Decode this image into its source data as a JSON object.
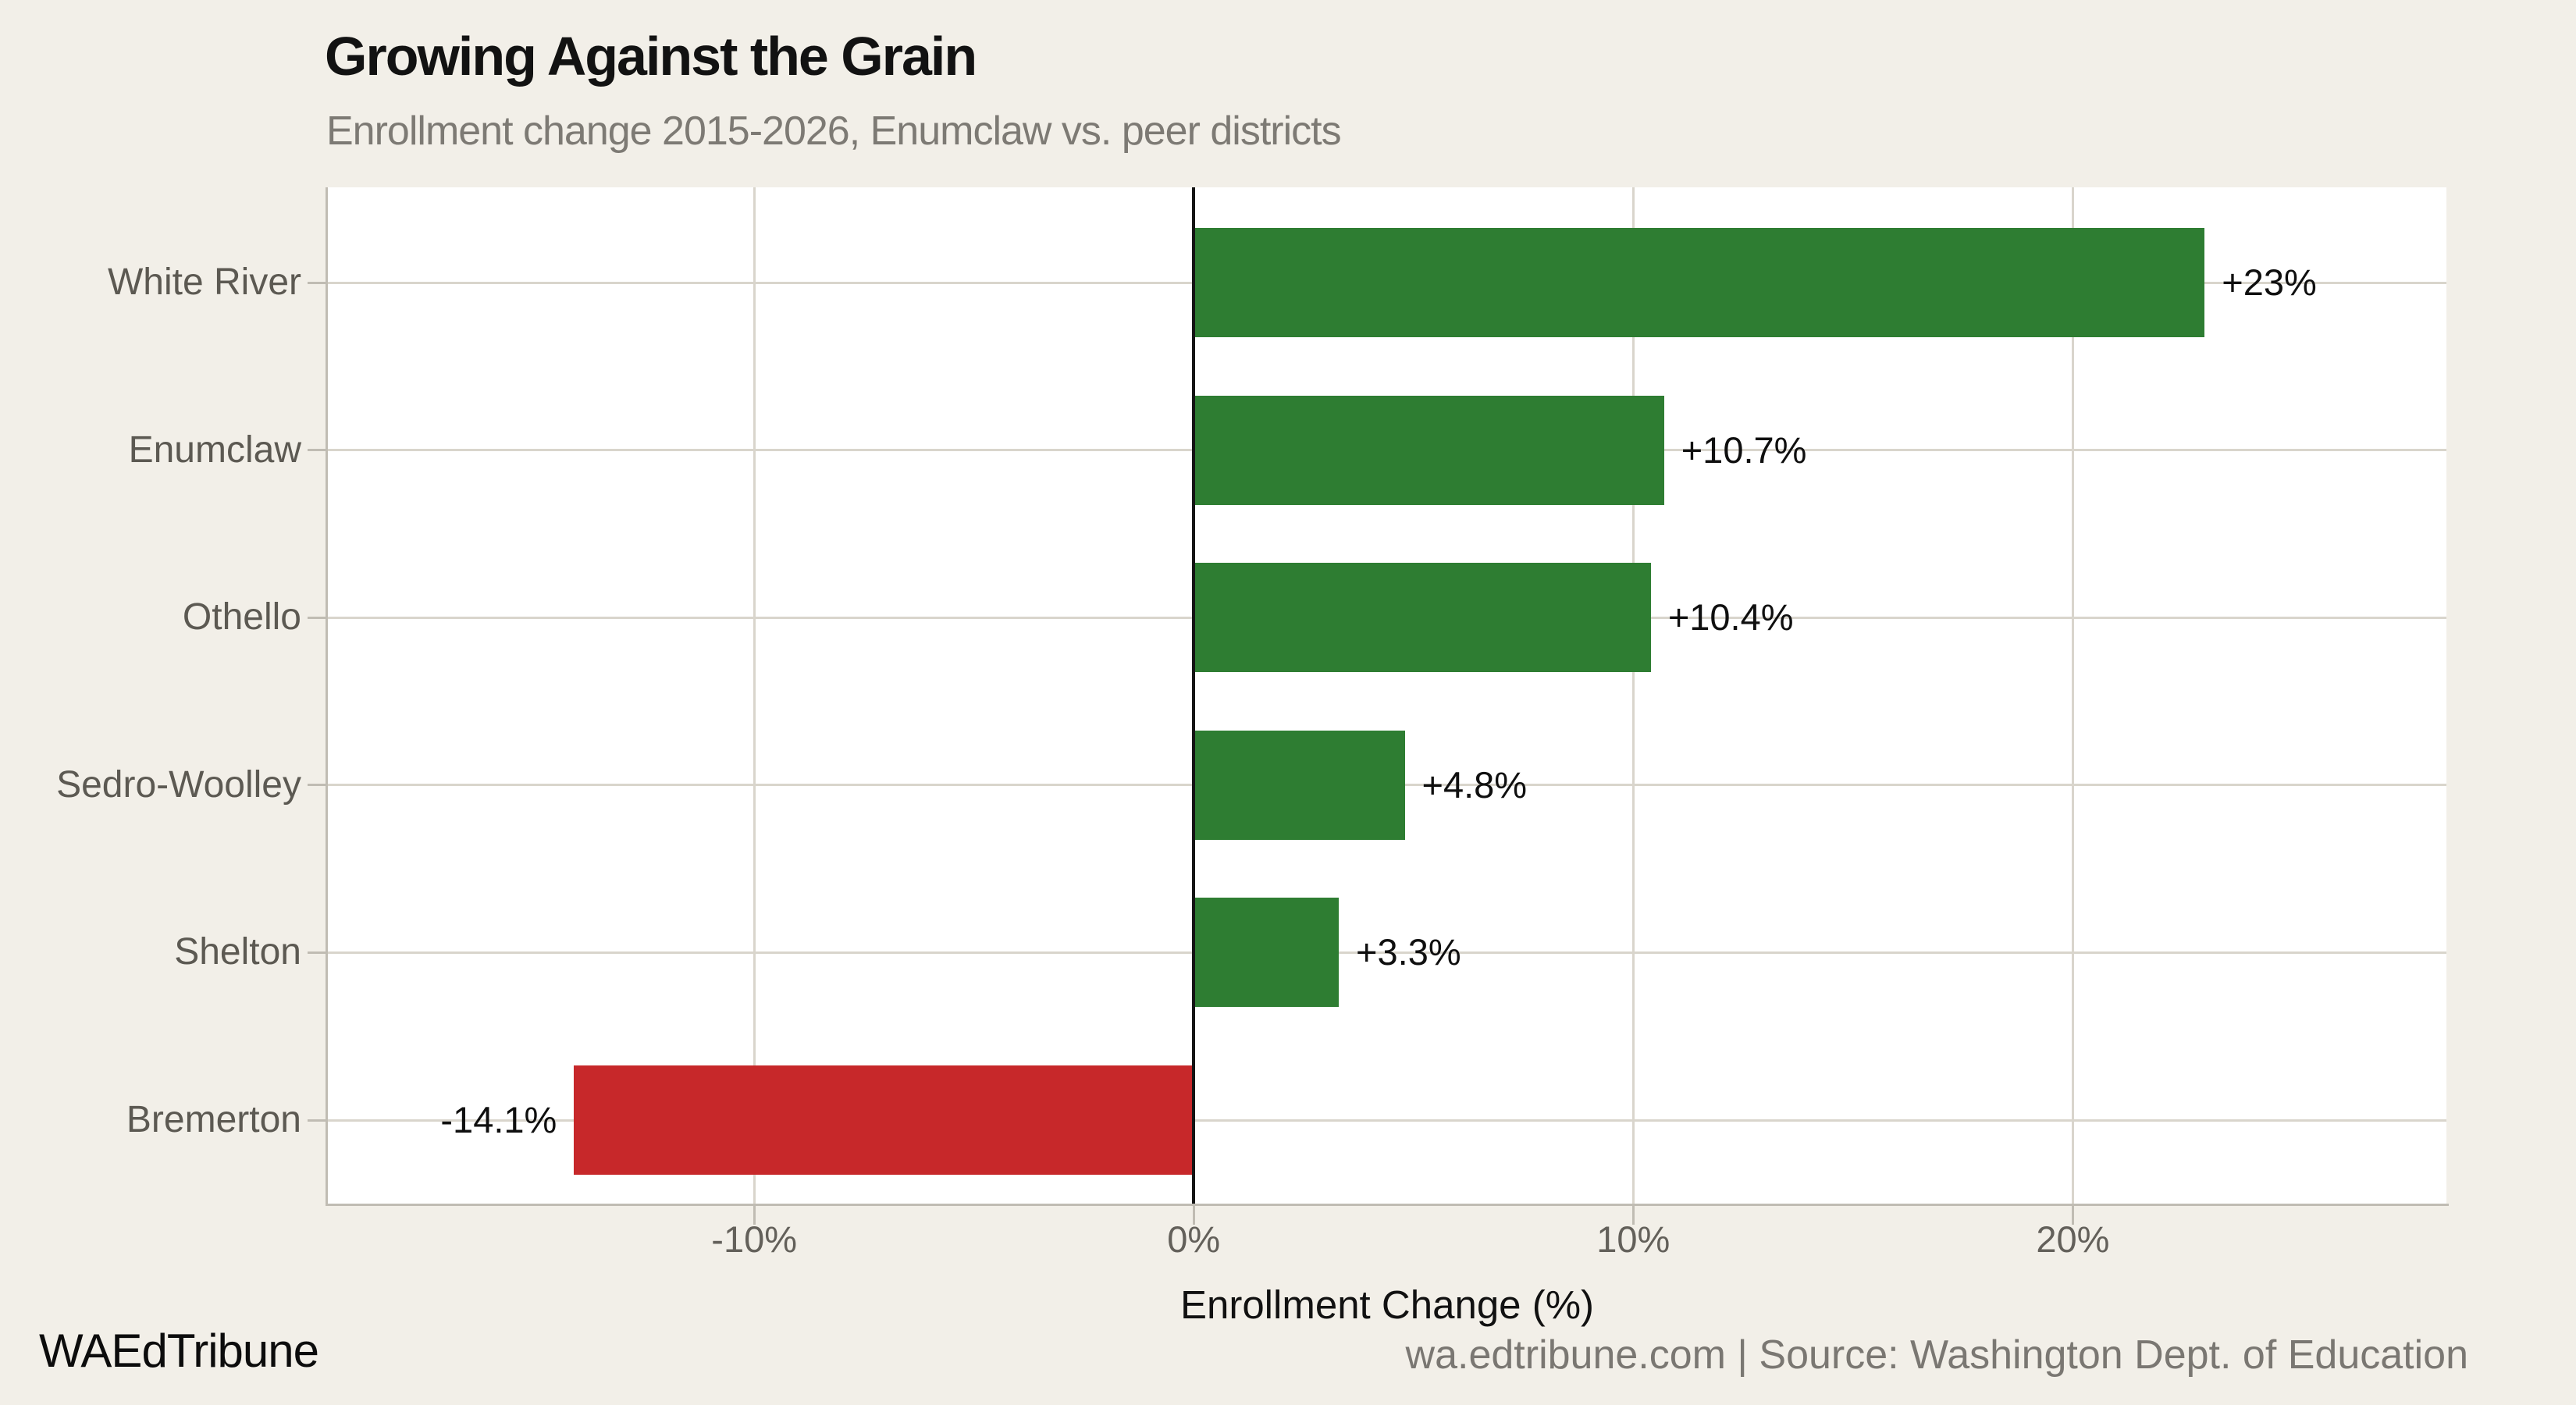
{
  "header": {
    "title": "Growing Against the Grain",
    "subtitle": "Enrollment change 2015-2026, Enumclaw vs. peer districts"
  },
  "chart_data": {
    "type": "bar",
    "orientation": "horizontal",
    "title": "Growing Against the Grain",
    "subtitle": "Enrollment change 2015-2026, Enumclaw vs. peer districts",
    "categories": [
      "White River",
      "Enumclaw",
      "Othello",
      "Sedro-Woolley",
      "Shelton",
      "Bremerton"
    ],
    "values": [
      23,
      10.7,
      10.4,
      4.8,
      3.3,
      -14.1
    ],
    "bar_labels": [
      "+23%",
      "+10.7%",
      "+10.4%",
      "+4.8%",
      "+3.3%",
      "-14.1%"
    ],
    "xlabel": "Enrollment Change (%)",
    "ylabel": "",
    "xlim": [
      -19.7,
      28.5
    ],
    "xticks": [
      {
        "value": -10,
        "label": "-10%"
      },
      {
        "value": 0,
        "label": "0%"
      },
      {
        "value": 10,
        "label": "10%"
      },
      {
        "value": 20,
        "label": "20%"
      }
    ],
    "grid": true,
    "legend": false,
    "zero_baseline": true,
    "colors": {
      "positive": "#2e7d32",
      "negative": "#c7282a",
      "zero_line": "#141414",
      "gridline": "#d9d5cc",
      "plot_bg": "#ffffff",
      "page_bg": "#f2efe8",
      "title": "#121212",
      "subtitle": "#7d7a74",
      "axis_labels": "#63605a"
    }
  },
  "footer": {
    "brand": "WAEdTribune",
    "attribution": "wa.edtribune.com | Source: Washington Dept. of Education"
  }
}
